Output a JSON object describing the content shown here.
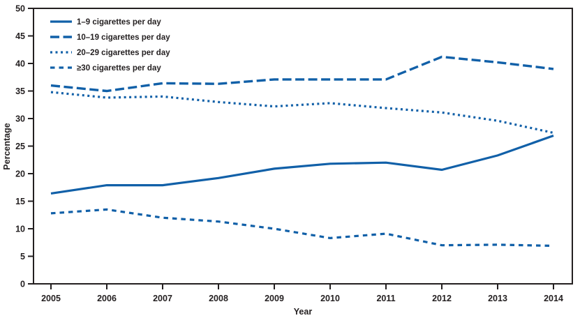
{
  "chart_data": {
    "type": "line",
    "title": "",
    "xlabel": "Year",
    "ylabel": "Percentage",
    "x": [
      2005,
      2006,
      2007,
      2008,
      2009,
      2010,
      2011,
      2012,
      2013,
      2014
    ],
    "ylim": [
      0,
      50
    ],
    "ytick_step": 5,
    "grid": false,
    "legend_position": "top-left",
    "line_color": "#1160a8",
    "axis_color": "#231f20",
    "series": [
      {
        "name": "1–9 cigarettes per day",
        "style": "solid",
        "values": [
          16.4,
          17.9,
          17.9,
          19.2,
          20.9,
          21.8,
          22.0,
          20.7,
          23.3,
          26.9
        ]
      },
      {
        "name": "10–19 cigarettes per day",
        "style": "long-dash",
        "values": [
          36.0,
          35.0,
          36.4,
          36.3,
          37.1,
          37.1,
          37.1,
          41.2,
          40.2,
          39.0
        ]
      },
      {
        "name": "20–29 cigarettes per day",
        "style": "dot",
        "values": [
          34.8,
          33.8,
          34.0,
          33.0,
          32.2,
          32.8,
          31.9,
          31.1,
          29.6,
          27.4
        ]
      },
      {
        "name": "≥30 cigarettes per day",
        "style": "dash",
        "values": [
          12.8,
          13.5,
          12.0,
          11.3,
          10.0,
          8.3,
          9.1,
          7.0,
          7.1,
          6.9
        ]
      }
    ]
  }
}
